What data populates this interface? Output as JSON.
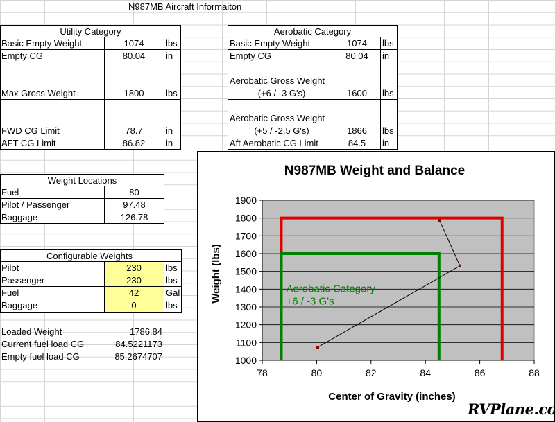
{
  "sheet_title": "N987MB Aircraft Informaiton",
  "utility": {
    "header": "Utility Category",
    "rows": [
      {
        "label": "Basic Empty Weight",
        "value": "1074",
        "unit": "lbs"
      },
      {
        "label": "Empty CG",
        "value": "80.04",
        "unit": "in"
      },
      {
        "label": "Max Gross Weight",
        "value": "1800",
        "unit": "lbs"
      },
      {
        "label": "FWD CG Limit",
        "value": "78.7",
        "unit": "in"
      },
      {
        "label": "AFT CG Limit",
        "value": "86.82",
        "unit": "in"
      }
    ]
  },
  "aerobatic": {
    "header": "Aerobatic Category",
    "rows": [
      {
        "label": "Basic Empty Weight",
        "value": "1074",
        "unit": "lbs"
      },
      {
        "label": "Empty CG",
        "value": "80.04",
        "unit": "in"
      },
      {
        "label": "Aerobatic Gross Weight",
        "label2": "(+6 / -3 G's)",
        "value": "1600",
        "unit": "lbs"
      },
      {
        "label": "Aerobatic Gross Weight",
        "label2": "(+5 / -2.5 G's)",
        "value": "1866",
        "unit": "lbs"
      },
      {
        "label": "Aft Aerobatic CG Limit",
        "value": "84.5",
        "unit": "in"
      }
    ]
  },
  "locations": {
    "header": "Weight Locations",
    "rows": [
      {
        "label": "Fuel",
        "value": "80"
      },
      {
        "label": "Pilot / Passenger",
        "value": "97.48"
      },
      {
        "label": "Baggage",
        "value": "126.78"
      }
    ]
  },
  "configurable": {
    "header": "Configurable Weights",
    "rows": [
      {
        "label": "Pilot",
        "value": "230",
        "unit": "lbs"
      },
      {
        "label": "Passenger",
        "value": "230",
        "unit": "lbs"
      },
      {
        "label": "Fuel",
        "value": "42",
        "unit": "Gal"
      },
      {
        "label": "Baggage",
        "value": "0",
        "unit": "lbs"
      }
    ]
  },
  "results": [
    {
      "label": "Loaded Weight",
      "value": "1786.84"
    },
    {
      "label": "Current fuel load CG",
      "value": "84.5221173"
    },
    {
      "label": "Empty fuel load CG",
      "value": "85.2674707"
    }
  ],
  "chart_data": {
    "type": "line",
    "title": "N987MB Weight and Balance",
    "xlabel": "Center of Gravity (inches)",
    "ylabel": "Weight (lbs)",
    "xlim": [
      78,
      88
    ],
    "ylim": [
      1000,
      1900
    ],
    "xticks": [
      78,
      80,
      82,
      84,
      86,
      88
    ],
    "yticks": [
      1000,
      1100,
      1200,
      1300,
      1400,
      1500,
      1600,
      1700,
      1800,
      1900
    ],
    "grid": true,
    "plot_background": "#c0c0c0",
    "series": [
      {
        "type": "envelope",
        "color": "#e00000",
        "x": [
          78.7,
          78.7,
          86.82,
          86.82
        ],
        "y": [
          1000,
          1800,
          1800,
          1000
        ]
      },
      {
        "type": "envelope",
        "color": "#008000",
        "x": [
          78.7,
          78.7,
          84.5,
          84.5
        ],
        "y": [
          1000,
          1600,
          1600,
          1000
        ]
      },
      {
        "type": "loading",
        "color": "#000000",
        "marker_color": "#8b0000",
        "x": [
          80.04,
          85.27,
          84.52
        ],
        "y": [
          1074,
          1531,
          1787
        ]
      }
    ],
    "annotation": {
      "text": [
        "Aerobatic Category",
        "+6 / -3 G's"
      ],
      "color": "#008000"
    }
  },
  "watermark": "RVPlane.com"
}
